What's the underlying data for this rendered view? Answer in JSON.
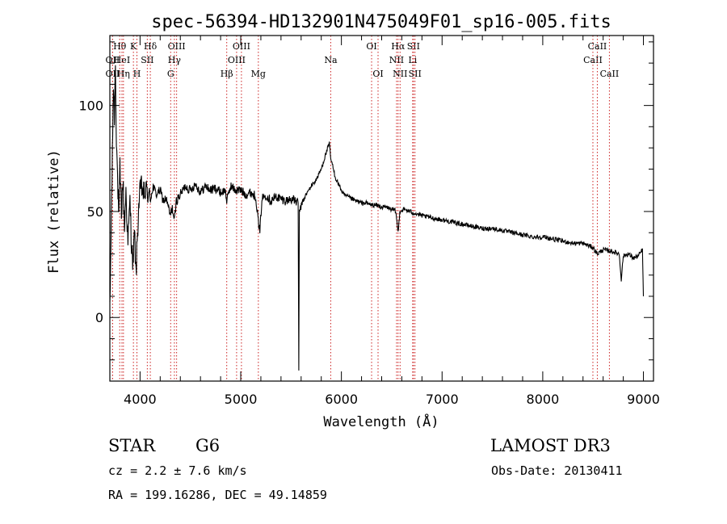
{
  "chart_data": {
    "type": "line",
    "title": "spec-56394-HD132901N475049F01_sp16-005.fits",
    "xlabel": "Wavelength (Å)",
    "ylabel": "Flux (relative)",
    "xlim": [
      3700,
      9100
    ],
    "ylim": [
      -30,
      133
    ],
    "xticks": [
      4000,
      5000,
      6000,
      7000,
      8000,
      9000
    ],
    "xtick_labels": [
      "4000",
      "5000",
      "6000",
      "7000",
      "8000",
      "9000"
    ],
    "yticks": [
      0,
      50,
      100
    ],
    "ytick_labels": [
      "0",
      "50",
      "100"
    ],
    "line_marks": [
      {
        "name": "OII",
        "wave": 3727,
        "row": 1
      },
      {
        "name": "OII",
        "wave": 3727,
        "row": 2
      },
      {
        "name": "Hθ",
        "wave": 3798,
        "row": 0
      },
      {
        "name": "HeI",
        "wave": 3820,
        "row": 1
      },
      {
        "name": "Hη",
        "wave": 3835,
        "row": 2
      },
      {
        "name": "K",
        "wave": 3934,
        "row": 0
      },
      {
        "name": "H",
        "wave": 3969,
        "row": 2
      },
      {
        "name": "SII",
        "wave": 4072,
        "row": 1
      },
      {
        "name": "Hδ",
        "wave": 4102,
        "row": 0
      },
      {
        "name": "G",
        "wave": 4304,
        "row": 2
      },
      {
        "name": "Hγ",
        "wave": 4341,
        "row": 1
      },
      {
        "name": "OIII",
        "wave": 4363,
        "row": 0
      },
      {
        "name": "Hβ",
        "wave": 4861,
        "row": 2
      },
      {
        "name": "OIII",
        "wave": 4959,
        "row": 1
      },
      {
        "name": "OIII",
        "wave": 5007,
        "row": 0
      },
      {
        "name": "Mg",
        "wave": 5175,
        "row": 2
      },
      {
        "name": "Na",
        "wave": 5894,
        "row": 1
      },
      {
        "name": "OI",
        "wave": 6300,
        "row": 0
      },
      {
        "name": "OI",
        "wave": 6364,
        "row": 2
      },
      {
        "name": "NII",
        "wave": 6548,
        "row": 1
      },
      {
        "name": "Hα",
        "wave": 6563,
        "row": 0
      },
      {
        "name": "NII",
        "wave": 6583,
        "row": 2
      },
      {
        "name": "Li",
        "wave": 6708,
        "row": 1
      },
      {
        "name": "SII",
        "wave": 6716,
        "row": 0
      },
      {
        "name": "SII",
        "wave": 6731,
        "row": 2
      },
      {
        "name": "CaII",
        "wave": 8498,
        "row": 1
      },
      {
        "name": "CaII",
        "wave": 8542,
        "row": 0
      },
      {
        "name": "CaII",
        "wave": 8662,
        "row": 2
      }
    ],
    "series": [
      {
        "name": "spectrum",
        "points": [
          [
            3700,
            2
          ],
          [
            3715,
            48
          ],
          [
            3725,
            75
          ],
          [
            3735,
            110
          ],
          [
            3745,
            95
          ],
          [
            3755,
            120
          ],
          [
            3765,
            85
          ],
          [
            3780,
            60
          ],
          [
            3790,
            45
          ],
          [
            3800,
            70
          ],
          [
            3815,
            50
          ],
          [
            3830,
            65
          ],
          [
            3845,
            42
          ],
          [
            3860,
            60
          ],
          [
            3880,
            35
          ],
          [
            3900,
            55
          ],
          [
            3915,
            35
          ],
          [
            3930,
            25
          ],
          [
            3945,
            40
          ],
          [
            3960,
            20
          ],
          [
            3975,
            40
          ],
          [
            3990,
            55
          ],
          [
            4010,
            62
          ],
          [
            4040,
            58
          ],
          [
            4070,
            60
          ],
          [
            4100,
            55
          ],
          [
            4130,
            62
          ],
          [
            4160,
            58
          ],
          [
            4200,
            60
          ],
          [
            4230,
            55
          ],
          [
            4260,
            56
          ],
          [
            4300,
            48
          ],
          [
            4320,
            52
          ],
          [
            4340,
            45
          ],
          [
            4360,
            55
          ],
          [
            4400,
            58
          ],
          [
            4450,
            62
          ],
          [
            4500,
            60
          ],
          [
            4550,
            63
          ],
          [
            4600,
            59
          ],
          [
            4650,
            62
          ],
          [
            4700,
            60
          ],
          [
            4750,
            61
          ],
          [
            4800,
            59
          ],
          [
            4850,
            60
          ],
          [
            4861,
            54
          ],
          [
            4880,
            59
          ],
          [
            4900,
            62
          ],
          [
            4950,
            60
          ],
          [
            5000,
            60
          ],
          [
            5050,
            58
          ],
          [
            5100,
            59
          ],
          [
            5150,
            57
          ],
          [
            5175,
            45
          ],
          [
            5190,
            40
          ],
          [
            5210,
            56
          ],
          [
            5250,
            58
          ],
          [
            5300,
            55
          ],
          [
            5350,
            57
          ],
          [
            5400,
            56
          ],
          [
            5450,
            55
          ],
          [
            5500,
            56
          ],
          [
            5540,
            55
          ],
          [
            5570,
            54
          ],
          [
            5577,
            -25
          ],
          [
            5582,
            50
          ],
          [
            5610,
            54
          ],
          [
            5650,
            58
          ],
          [
            5700,
            62
          ],
          [
            5750,
            65
          ],
          [
            5800,
            70
          ],
          [
            5850,
            78
          ],
          [
            5880,
            82
          ],
          [
            5894,
            75
          ],
          [
            5910,
            72
          ],
          [
            5940,
            66
          ],
          [
            5980,
            62
          ],
          [
            6020,
            58
          ],
          [
            6060,
            57
          ],
          [
            6100,
            56
          ],
          [
            6140,
            55
          ],
          [
            6200,
            54
          ],
          [
            6250,
            54
          ],
          [
            6300,
            53
          ],
          [
            6350,
            53
          ],
          [
            6400,
            52
          ],
          [
            6450,
            52
          ],
          [
            6500,
            51
          ],
          [
            6540,
            50
          ],
          [
            6563,
            40
          ],
          [
            6580,
            50
          ],
          [
            6620,
            51
          ],
          [
            6680,
            50
          ],
          [
            6740,
            49
          ],
          [
            6800,
            48
          ],
          [
            6900,
            47
          ],
          [
            7000,
            46
          ],
          [
            7100,
            45
          ],
          [
            7200,
            44
          ],
          [
            7300,
            43
          ],
          [
            7400,
            42
          ],
          [
            7500,
            42
          ],
          [
            7600,
            41
          ],
          [
            7700,
            40
          ],
          [
            7800,
            39
          ],
          [
            7900,
            38
          ],
          [
            8000,
            38
          ],
          [
            8100,
            37
          ],
          [
            8200,
            36
          ],
          [
            8300,
            35
          ],
          [
            8400,
            35
          ],
          [
            8500,
            33
          ],
          [
            8542,
            30
          ],
          [
            8600,
            32
          ],
          [
            8700,
            31
          ],
          [
            8760,
            30
          ],
          [
            8780,
            18
          ],
          [
            8800,
            29
          ],
          [
            8850,
            30
          ],
          [
            8900,
            28
          ],
          [
            8950,
            29
          ],
          [
            8990,
            32
          ],
          [
            9000,
            10
          ]
        ]
      }
    ]
  },
  "info": {
    "object_class": "STAR",
    "subclass": "G6",
    "survey": "LAMOST DR3",
    "redshift": "cz = 2.2 ± 7.6 km/s",
    "obs_date": "Obs-Date: 20130411",
    "coords": "RA = 199.16286, DEC =  49.14859"
  }
}
